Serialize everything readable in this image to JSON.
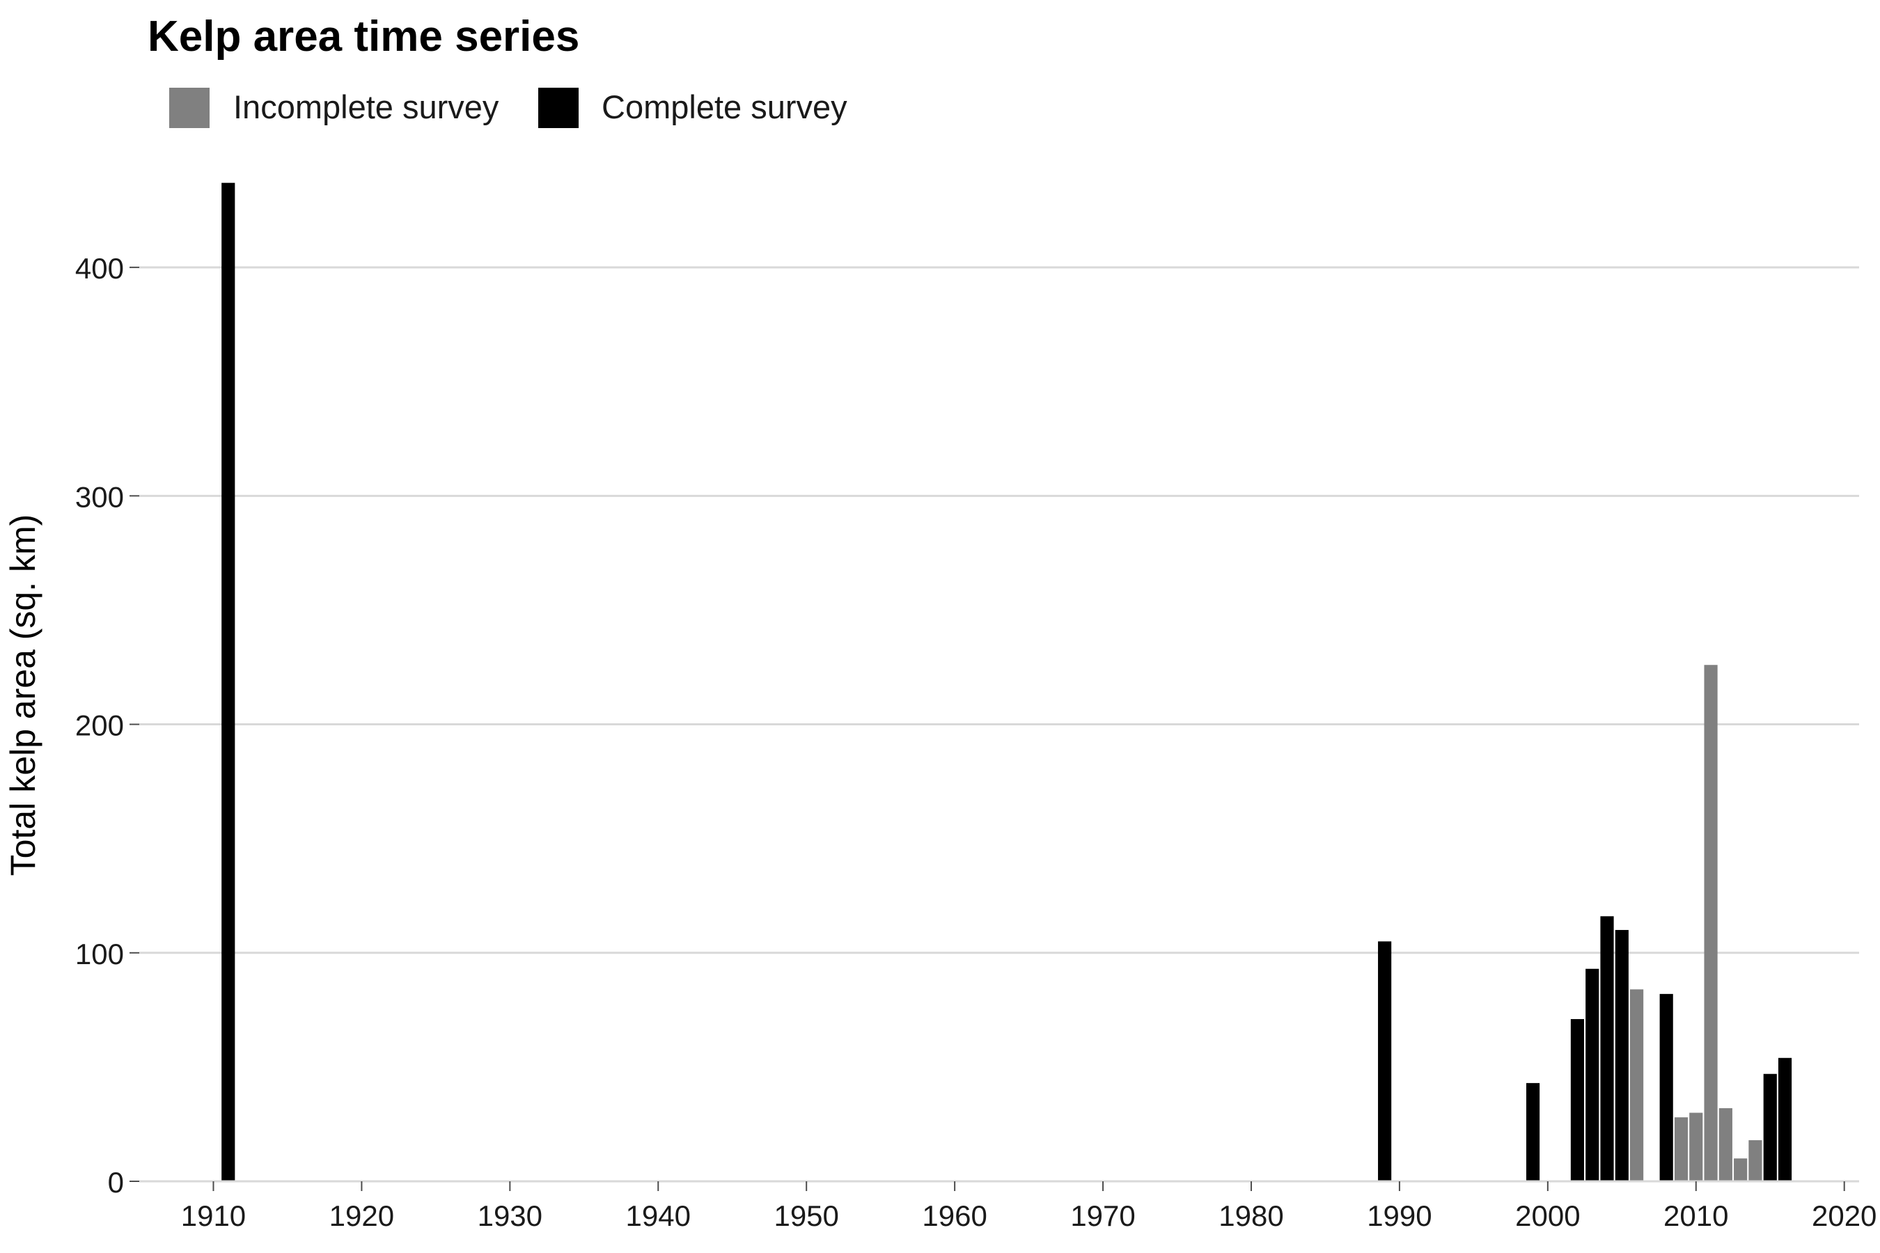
{
  "chart_data": {
    "type": "bar",
    "title": "Kelp area time series",
    "xlabel": "",
    "ylabel": "Total kelp area (sq. km)",
    "xlim": [
      1905,
      2021
    ],
    "ylim": [
      0,
      450
    ],
    "xticks": [
      1910,
      1920,
      1930,
      1940,
      1950,
      1960,
      1970,
      1980,
      1990,
      2000,
      2010,
      2020
    ],
    "yticks": [
      0,
      100,
      200,
      300,
      400
    ],
    "grid": "horizontal",
    "legend_position": "top-left",
    "legend": [
      {
        "key": "incomplete",
        "label": "Incomplete survey",
        "color": "#808080"
      },
      {
        "key": "complete",
        "label": "Complete survey",
        "color": "#000000"
      }
    ],
    "bars": [
      {
        "year": 1911,
        "value": 437,
        "survey": "complete"
      },
      {
        "year": 1989,
        "value": 105,
        "survey": "complete"
      },
      {
        "year": 1999,
        "value": 43,
        "survey": "complete"
      },
      {
        "year": 2002,
        "value": 71,
        "survey": "complete"
      },
      {
        "year": 2003,
        "value": 93,
        "survey": "complete"
      },
      {
        "year": 2004,
        "value": 116,
        "survey": "complete"
      },
      {
        "year": 2005,
        "value": 110,
        "survey": "complete"
      },
      {
        "year": 2006,
        "value": 84,
        "survey": "incomplete"
      },
      {
        "year": 2008,
        "value": 82,
        "survey": "complete"
      },
      {
        "year": 2009,
        "value": 28,
        "survey": "incomplete"
      },
      {
        "year": 2010,
        "value": 30,
        "survey": "incomplete"
      },
      {
        "year": 2011,
        "value": 226,
        "survey": "incomplete"
      },
      {
        "year": 2012,
        "value": 32,
        "survey": "incomplete"
      },
      {
        "year": 2013,
        "value": 10,
        "survey": "incomplete"
      },
      {
        "year": 2014,
        "value": 18,
        "survey": "incomplete"
      },
      {
        "year": 2015,
        "value": 47,
        "survey": "complete"
      },
      {
        "year": 2016,
        "value": 54,
        "survey": "complete"
      }
    ]
  }
}
